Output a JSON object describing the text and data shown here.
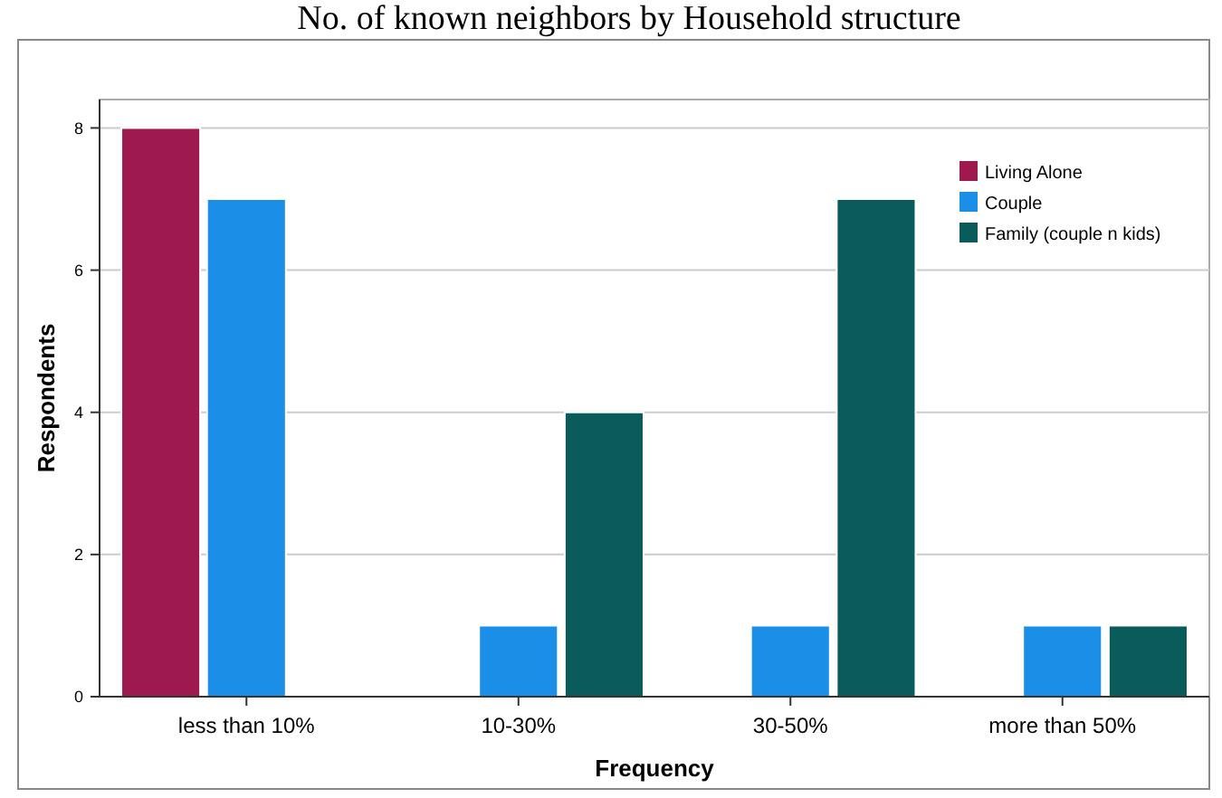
{
  "chart_data": {
    "type": "bar",
    "title": "No. of known neighbors by Household structure",
    "xlabel": "Frequency",
    "ylabel": "Respondents",
    "categories": [
      "less than 10%",
      "10-30%",
      "30-50%",
      "more than 50%"
    ],
    "series": [
      {
        "name": "Living Alone",
        "color": "#9e1a4e",
        "values": [
          8,
          null,
          null,
          null
        ]
      },
      {
        "name": "Couple",
        "color": "#1b8fe8",
        "values": [
          7,
          1,
          1,
          1
        ]
      },
      {
        "name": "Family (couple n kids)",
        "color": "#0a5c5a",
        "values": [
          null,
          4,
          7,
          1
        ]
      }
    ],
    "ylim": [
      0,
      8.4
    ],
    "yticks": [
      0,
      2,
      4,
      6,
      8
    ],
    "grid": "y",
    "legend": "top right"
  }
}
